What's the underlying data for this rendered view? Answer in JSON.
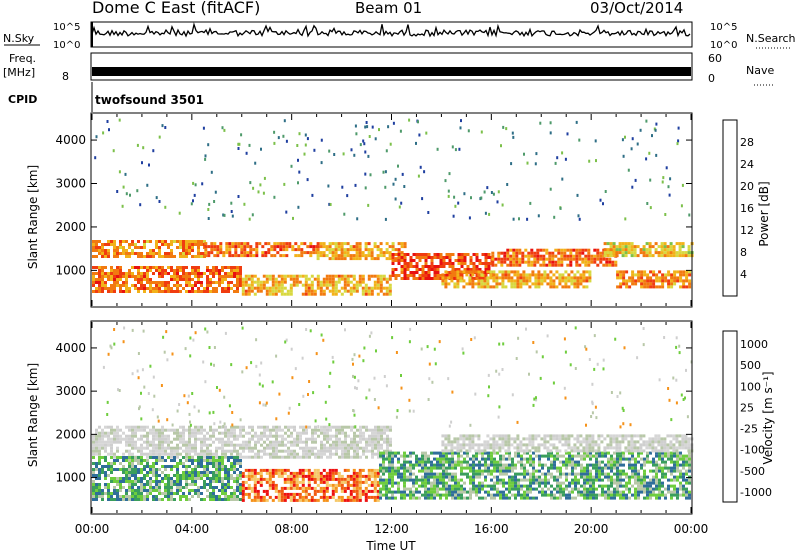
{
  "header": {
    "title": "Dome C East (fitACF)",
    "beam": "Beam 01",
    "date": "03/Oct/2014"
  },
  "status_panels": {
    "nsky_label": "N.Sky",
    "nsearch_label": "N.Search",
    "noise_ticks": [
      "10^5",
      "10^0"
    ],
    "freq_label": "Freq.",
    "freq_unit": "[MHz]",
    "freq_tick": "8",
    "nave_label": "Nave",
    "nave_ticks": [
      "60",
      "0"
    ],
    "cpid_label": "CPID",
    "cpid_value": "twofsound 3501"
  },
  "colors": {
    "power_scale": [
      "#1f1fff",
      "#1f3fa0",
      "#2e6e86",
      "#4e9a6a",
      "#7cc04a",
      "#d8d840",
      "#f2b21a",
      "#f27a10",
      "#f03c10",
      "#e81010"
    ],
    "velocity_scale": [
      "#ee1010",
      "#f25a10",
      "#f5921a",
      "#f6c868",
      "#cfcfcf",
      "#b8c8a8",
      "#6fcd3e",
      "#3a9e5c",
      "#2f6e9a",
      "#1f3aa6"
    ],
    "noise_trace": "#000000"
  },
  "chart_data": [
    {
      "type": "heatmap",
      "name": "power",
      "ylabel": "Slant Range [km]",
      "xlabel": "Time UT",
      "x_ticks": [
        "00:00",
        "04:00",
        "08:00",
        "12:00",
        "16:00",
        "20:00",
        "00:00"
      ],
      "y_ticks": [
        1000,
        2000,
        3000,
        4000
      ],
      "ylim": [
        180,
        4600
      ],
      "xlim_hours": [
        0,
        24
      ],
      "colorbar": {
        "label": "Power [dB]",
        "ticks": [
          4,
          8,
          12,
          16,
          20,
          24,
          28
        ],
        "range": [
          0,
          32
        ]
      },
      "bands": [
        {
          "t": [
            0,
            4.5
          ],
          "r": [
            1300,
            1700
          ],
          "level": 24
        },
        {
          "t": [
            4.5,
            9
          ],
          "r": [
            1350,
            1650
          ],
          "level": 26
        },
        {
          "t": [
            9,
            12.5
          ],
          "r": [
            1300,
            1650
          ],
          "level": 22
        },
        {
          "t": [
            12,
            16
          ],
          "r": [
            800,
            1400
          ],
          "level": 28
        },
        {
          "t": [
            16,
            21
          ],
          "r": [
            1100,
            1500
          ],
          "level": 26
        },
        {
          "t": [
            20.5,
            24
          ],
          "r": [
            1350,
            1650
          ],
          "level": 20
        },
        {
          "t": [
            0,
            6
          ],
          "r": [
            500,
            1100
          ],
          "level": 26
        },
        {
          "t": [
            6,
            12
          ],
          "r": [
            450,
            900
          ],
          "level": 22
        },
        {
          "t": [
            14,
            20
          ],
          "r": [
            600,
            1000
          ],
          "level": 22
        },
        {
          "t": [
            21,
            24
          ],
          "r": [
            600,
            1000
          ],
          "level": 24
        }
      ]
    },
    {
      "type": "heatmap",
      "name": "velocity",
      "ylabel": "Slant Range [km]",
      "xlabel": "Time UT",
      "x_ticks": [
        "00:00",
        "04:00",
        "08:00",
        "12:00",
        "16:00",
        "20:00",
        "00:00"
      ],
      "y_ticks": [
        1000,
        2000,
        3000,
        4000
      ],
      "ylim": [
        180,
        4600
      ],
      "xlim_hours": [
        0,
        24
      ],
      "colorbar": {
        "label": "Velocity [m s⁻¹]",
        "ticks": [
          1000,
          500,
          100,
          25,
          -25,
          -100,
          -500,
          -1000
        ]
      },
      "bands": [
        {
          "t": [
            0,
            12
          ],
          "r": [
            1500,
            2200
          ],
          "class": "gray"
        },
        {
          "t": [
            0,
            6
          ],
          "r": [
            500,
            1500
          ],
          "class": "green"
        },
        {
          "t": [
            6,
            11.5
          ],
          "r": [
            500,
            1200
          ],
          "class": "orange"
        },
        {
          "t": [
            11.5,
            24
          ],
          "r": [
            500,
            1600
          ],
          "class": "green"
        },
        {
          "t": [
            14,
            24
          ],
          "r": [
            1600,
            2000
          ],
          "class": "gray"
        }
      ]
    }
  ]
}
